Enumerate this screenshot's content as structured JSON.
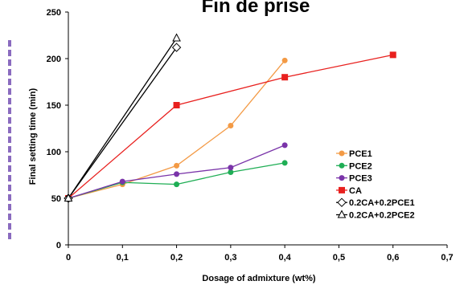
{
  "chart_data": {
    "type": "line",
    "title": "Fin de prise",
    "xlabel": "Dosage of admixture (wt%)",
    "ylabel": "Final setting time (min)",
    "xlim": [
      0,
      0.7
    ],
    "ylim": [
      0,
      250
    ],
    "x_ticks": [
      "0",
      "0,1",
      "0,2",
      "0,3",
      "0,4",
      "0,5",
      "0,6",
      "0,7"
    ],
    "x_tick_values": [
      0,
      0.1,
      0.2,
      0.3,
      0.4,
      0.5,
      0.6,
      0.7
    ],
    "y_ticks": [
      "0",
      "50",
      "100",
      "150",
      "200",
      "250"
    ],
    "y_tick_values": [
      0,
      50,
      100,
      150,
      200,
      250
    ],
    "grid": false,
    "legend_position": "bottom-right",
    "series": [
      {
        "name": "PCE1",
        "color": "#f39a45",
        "marker": "circle",
        "x": [
          0,
          0.1,
          0.2,
          0.3,
          0.4
        ],
        "y": [
          50,
          65,
          85,
          128,
          198
        ]
      },
      {
        "name": "PCE2",
        "color": "#1fae55",
        "marker": "circle",
        "x": [
          0,
          0.1,
          0.2,
          0.3,
          0.4
        ],
        "y": [
          50,
          67,
          65,
          78,
          88
        ]
      },
      {
        "name": "PCE3",
        "color": "#7a34a9",
        "marker": "circle",
        "x": [
          0,
          0.1,
          0.2,
          0.3,
          0.4
        ],
        "y": [
          50,
          68,
          76,
          83,
          107
        ]
      },
      {
        "name": "CA",
        "color": "#e8201e",
        "marker": "square",
        "x": [
          0,
          0.2,
          0.4,
          0.6
        ],
        "y": [
          50,
          150,
          180,
          204
        ]
      },
      {
        "name": "0.2CA+0.2PCE1",
        "color": "#000000",
        "marker": "diamond-open",
        "x": [
          0,
          0.2
        ],
        "y": [
          50,
          212
        ]
      },
      {
        "name": "0.2CA+0.2PCE2",
        "color": "#000000",
        "marker": "triangle-open",
        "x": [
          0,
          0.2
        ],
        "y": [
          50,
          222
        ]
      }
    ]
  }
}
